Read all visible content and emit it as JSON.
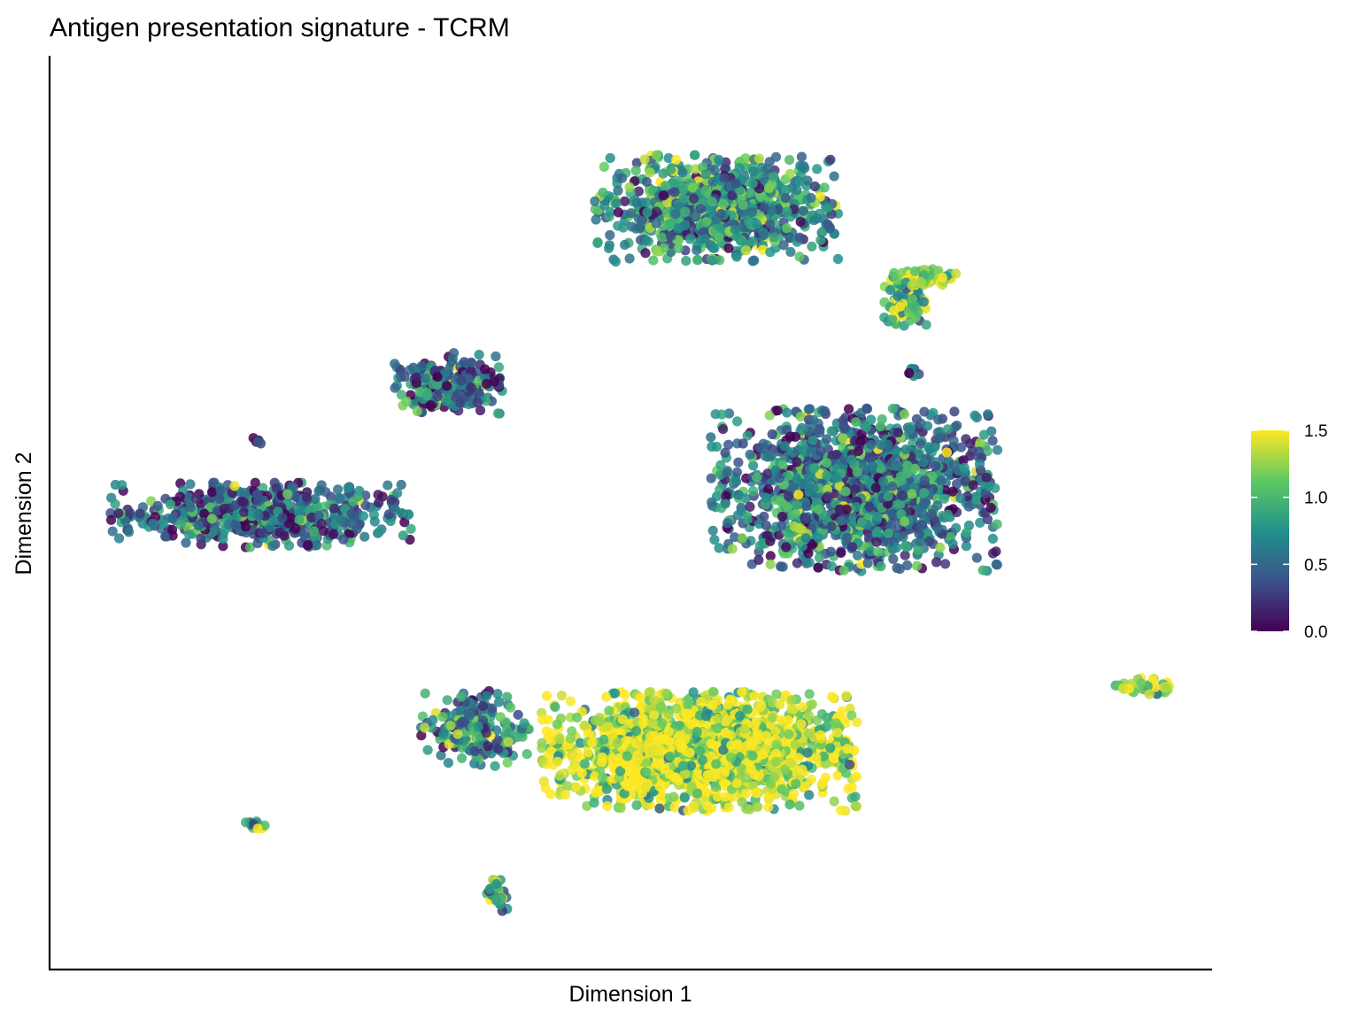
{
  "chart_data": {
    "type": "scatter",
    "title": "Antigen presentation signature - TCRM",
    "xlabel": "Dimension 1",
    "ylabel": "Dimension 2",
    "x_ticks_shown": false,
    "y_ticks_shown": false,
    "grid": false,
    "xlim": [
      0,
      100
    ],
    "ylim": [
      0,
      100
    ],
    "color_scale": {
      "name": "viridis",
      "min": 0.0,
      "max": 1.5,
      "ticks": [
        "0.0",
        "0.5",
        "1.0",
        "1.5"
      ],
      "colors": [
        "#440154",
        "#3b528b",
        "#21918c",
        "#5ec962",
        "#fde725"
      ]
    },
    "legend_position": "right",
    "clusters": [
      {
        "id": "top",
        "center": [
          57.5,
          86.2
        ],
        "spread": [
          8.5,
          5.0
        ],
        "count": 900,
        "score_mean": 0.75
      },
      {
        "id": "top-arm",
        "center": [
          73.8,
          75.2
        ],
        "spread": [
          1.6,
          2.0
        ],
        "count": 110,
        "score_mean": 1.0
      },
      {
        "id": "top-right-tip",
        "center": [
          75.5,
          78.3
        ],
        "spread": [
          2.3,
          0.8
        ],
        "count": 90,
        "score_mean": 1.3
      },
      {
        "id": "mid-left-small",
        "center": [
          34.2,
          66.2
        ],
        "spread": [
          3.8,
          2.8
        ],
        "count": 250,
        "score_mean": 0.55
      },
      {
        "id": "tiny-left",
        "center": [
          17.3,
          59.6
        ],
        "spread": [
          0.4,
          0.4
        ],
        "count": 6,
        "score_mean": 0.2
      },
      {
        "id": "left-elongated",
        "center": [
          17.8,
          51.1
        ],
        "spread": [
          10.5,
          3.0
        ],
        "count": 600,
        "score_mean": 0.5
      },
      {
        "id": "right-big",
        "center": [
          69.5,
          54.0
        ],
        "spread": [
          10.0,
          7.5
        ],
        "count": 1500,
        "score_mean": 0.6
      },
      {
        "id": "right-small-top",
        "center": [
          74.6,
          67.3
        ],
        "spread": [
          0.5,
          0.8
        ],
        "count": 10,
        "score_mean": 0.5
      },
      {
        "id": "bottom-yellow",
        "center": [
          56.0,
          24.0
        ],
        "spread": [
          11.0,
          5.5
        ],
        "count": 1700,
        "score_mean": 1.4
      },
      {
        "id": "bottom-left-arm",
        "center": [
          36.5,
          26.5
        ],
        "spread": [
          3.8,
          3.6
        ],
        "count": 200,
        "score_mean": 0.7
      },
      {
        "id": "bottom-right-small",
        "center": [
          95.0,
          31.5
        ],
        "spread": [
          2.3,
          0.8
        ],
        "count": 40,
        "score_mean": 1.3
      },
      {
        "id": "small-bottom-left",
        "center": [
          17.5,
          15.5
        ],
        "spread": [
          1.0,
          0.5
        ],
        "count": 14,
        "score_mean": 1.0
      },
      {
        "id": "small-bottom-mid",
        "center": [
          38.3,
          7.5
        ],
        "spread": [
          0.9,
          1.5
        ],
        "count": 40,
        "score_mean": 0.9
      }
    ]
  }
}
